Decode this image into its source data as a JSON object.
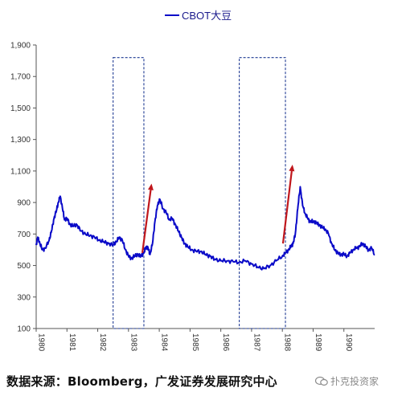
{
  "chart_data": {
    "type": "line",
    "title": "",
    "legend": {
      "label": "CBOT大豆",
      "placement": "top-center"
    },
    "xlabel": "",
    "ylabel": "",
    "ylim": [
      100,
      1900
    ],
    "xlim": [
      1980.0,
      1991.0
    ],
    "y_ticks": [
      100,
      300,
      500,
      700,
      900,
      1100,
      1300,
      1500,
      1700,
      1900
    ],
    "y_tick_labels": [
      "100",
      "300",
      "500",
      "700",
      "900",
      "1,100",
      "1,300",
      "1,500",
      "1,700",
      "1,900"
    ],
    "x_tick_labels": [
      "1980",
      "1981",
      "1982",
      "1983",
      "1984",
      "1985",
      "1986",
      "1987",
      "1988",
      "1989",
      "1990"
    ],
    "grid": false,
    "series": [
      {
        "name": "CBOT大豆",
        "color": "#0a0ac8",
        "x": [
          1980.0,
          1980.05,
          1980.12,
          1980.2,
          1980.3,
          1980.42,
          1980.5,
          1980.58,
          1980.66,
          1980.72,
          1980.78,
          1980.85,
          1980.92,
          1981.0,
          1981.1,
          1981.2,
          1981.32,
          1981.45,
          1981.6,
          1981.75,
          1981.9,
          1982.05,
          1982.2,
          1982.35,
          1982.5,
          1982.6,
          1982.7,
          1982.8,
          1982.9,
          1983.0,
          1983.1,
          1983.2,
          1983.3,
          1983.4,
          1983.5,
          1983.58,
          1983.64,
          1983.7,
          1983.78,
          1983.86,
          1983.94,
          1984.02,
          1984.12,
          1984.22,
          1984.32,
          1984.42,
          1984.52,
          1984.62,
          1984.72,
          1984.82,
          1984.92,
          1985.05,
          1985.2,
          1985.35,
          1985.5,
          1985.65,
          1985.8,
          1986.0,
          1986.2,
          1986.4,
          1986.6,
          1986.8,
          1987.0,
          1987.2,
          1987.4,
          1987.6,
          1987.8,
          1988.0,
          1988.1,
          1988.2,
          1988.28,
          1988.35,
          1988.42,
          1988.5,
          1988.58,
          1988.66,
          1988.74,
          1988.82,
          1988.9,
          1989.0,
          1989.1,
          1989.2,
          1989.3,
          1989.4,
          1989.5,
          1989.6,
          1989.7,
          1989.8,
          1989.9,
          1990.0,
          1990.1,
          1990.2,
          1990.3,
          1990.4,
          1990.5,
          1990.6,
          1990.7,
          1990.8,
          1990.9,
          1991.0
        ],
        "values": [
          630,
          680,
          640,
          600,
          610,
          660,
          720,
          800,
          850,
          900,
          940,
          870,
          790,
          800,
          760,
          750,
          760,
          720,
          700,
          690,
          680,
          660,
          650,
          640,
          630,
          650,
          680,
          660,
          600,
          560,
          545,
          560,
          570,
          560,
          580,
          620,
          610,
          570,
          640,
          780,
          880,
          920,
          860,
          840,
          790,
          800,
          760,
          720,
          680,
          640,
          620,
          600,
          590,
          590,
          570,
          560,
          540,
          530,
          530,
          525,
          520,
          530,
          510,
          490,
          480,
          500,
          530,
          560,
          580,
          600,
          620,
          640,
          700,
          860,
          1000,
          880,
          830,
          800,
          780,
          780,
          770,
          760,
          740,
          730,
          700,
          640,
          600,
          580,
          570,
          570,
          560,
          580,
          600,
          610,
          620,
          640,
          620,
          600,
          610,
          570
        ]
      }
    ],
    "annotations": [
      {
        "type": "dashed-box",
        "color": "#1f3a93",
        "x_range": [
          1982.5,
          1983.5
        ],
        "y_range": [
          100,
          1820
        ]
      },
      {
        "type": "dashed-box",
        "color": "#1f3a93",
        "x_range": [
          1986.6,
          1988.1
        ],
        "y_range": [
          100,
          1820
        ]
      },
      {
        "type": "arrow",
        "color": "#c0171c",
        "from": [
          1983.45,
          580
        ],
        "to": [
          1983.75,
          1020
        ]
      },
      {
        "type": "arrow",
        "color": "#c0171c",
        "from": [
          1988.02,
          640
        ],
        "to": [
          1988.33,
          1140
        ]
      }
    ]
  },
  "footer": {
    "text": "数据来源：Bloomberg，广发证券发展研究中心"
  },
  "watermark": {
    "text": "扑克投资家",
    "icon": "chat-bubble-icon"
  }
}
